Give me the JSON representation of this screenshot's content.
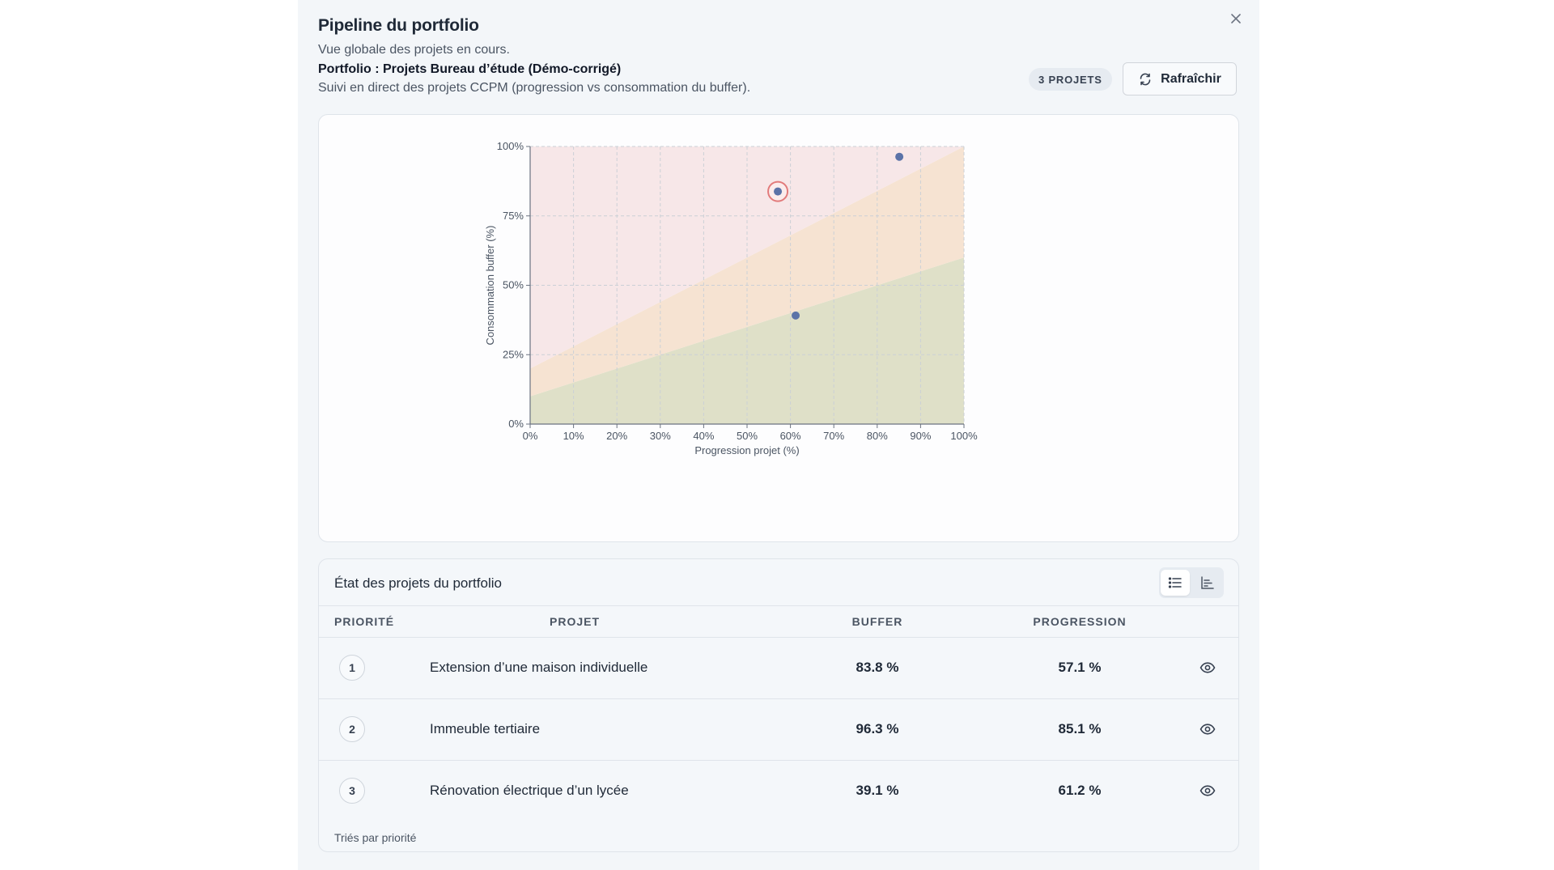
{
  "dialog": {
    "title": "Pipeline du portfolio",
    "subtitle": "Vue globale des projets en cours.",
    "portfolio_name": "Portfolio : Projets Bureau d’étude (Démo-corrigé)",
    "portfolio_desc": "Suivi en direct des projets CCPM (progression vs consommation du buffer).",
    "count_badge": "3 PROJETS",
    "refresh_label": "Rafraîchir",
    "close_icon": "close-icon"
  },
  "chart_data": {
    "type": "scatter",
    "title": "",
    "xlabel": "Progression projet (%)",
    "ylabel": "Consommation buffer (%)",
    "xlim": [
      0,
      100
    ],
    "ylim": [
      0,
      100
    ],
    "x_ticks": [
      "0%",
      "10%",
      "20%",
      "30%",
      "40%",
      "50%",
      "60%",
      "70%",
      "80%",
      "90%",
      "100%"
    ],
    "y_ticks": [
      "0%",
      "25%",
      "50%",
      "75%",
      "100%"
    ],
    "grid": true,
    "zones": [
      {
        "name": "green",
        "color": "#dfe0c8",
        "lower": [
          [
            0,
            0
          ],
          [
            100,
            0
          ]
        ],
        "upper": [
          [
            0,
            10
          ],
          [
            100,
            60
          ]
        ]
      },
      {
        "name": "orange",
        "color": "#f6e3d2",
        "lower": [
          [
            0,
            10
          ],
          [
            100,
            60
          ]
        ],
        "upper": [
          [
            0,
            20
          ],
          [
            100,
            100
          ]
        ]
      },
      {
        "name": "red",
        "color": "#f7e7e8",
        "lower": [
          [
            0,
            20
          ],
          [
            100,
            100
          ]
        ],
        "upper": [
          [
            0,
            100
          ],
          [
            100,
            100
          ]
        ]
      }
    ],
    "points": [
      {
        "x": 57.1,
        "y": 83.8,
        "highlighted": true
      },
      {
        "x": 85.1,
        "y": 96.3,
        "highlighted": false
      },
      {
        "x": 61.2,
        "y": 39.1,
        "highlighted": false
      }
    ],
    "point_color": "#5b73a8",
    "highlight_ring_color": "#e27b7b"
  },
  "table": {
    "title": "État des projets du portfolio",
    "view_icons": [
      "list-icon",
      "chart-icon"
    ],
    "headers": {
      "priority": "PRIORITÉ",
      "project": "PROJET",
      "buffer": "BUFFER",
      "progression": "PROGRESSION"
    },
    "rows": [
      {
        "priority": "1",
        "name": "Extension d’une maison individuelle",
        "buffer": "83.8 %",
        "progression": "57.1 %"
      },
      {
        "priority": "2",
        "name": "Immeuble tertiaire",
        "buffer": "96.3 %",
        "progression": "85.1 %"
      },
      {
        "priority": "3",
        "name": "Rénovation électrique d’un lycée",
        "buffer": "39.1 %",
        "progression": "61.2 %"
      }
    ],
    "row_action_icon": "eye-icon",
    "footnote": "Triés par priorité"
  }
}
